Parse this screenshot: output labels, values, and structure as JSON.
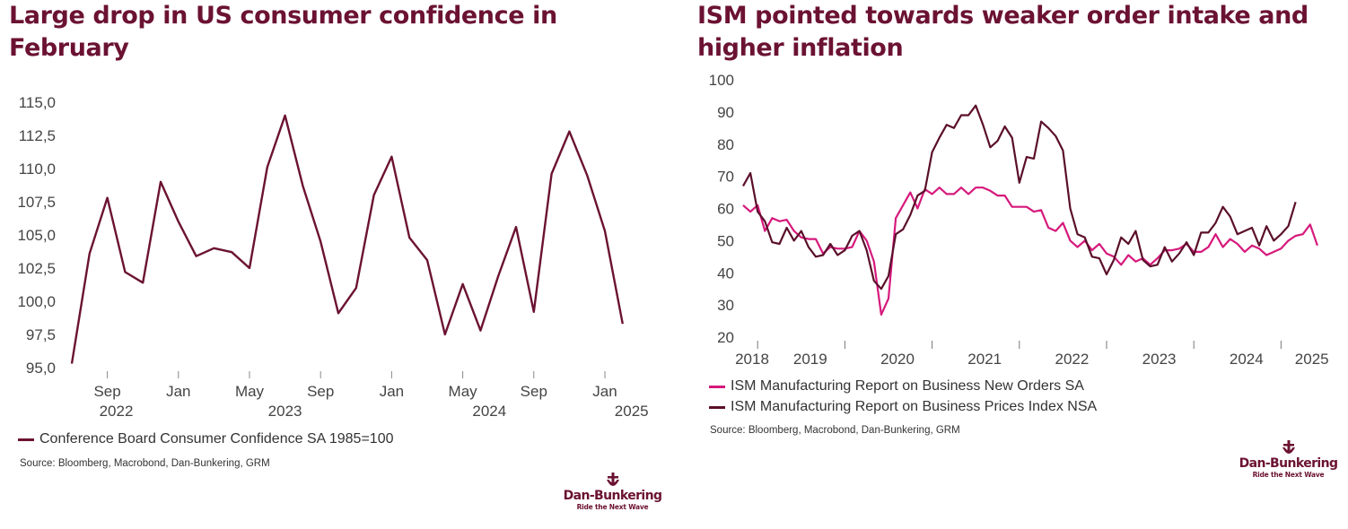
{
  "colors": {
    "accent": "#6b1232",
    "pink": "#d6197c",
    "axis": "#444444"
  },
  "left": {
    "title": "Large drop in US consumer confidence in February",
    "legend": "Conference Board Consumer Confidence SA 1985=100",
    "source": "Source: Bloomberg, Macrobond, Dan-Bunkering, GRM",
    "brand": {
      "name": "Dan-Bunkering",
      "tagline": "Ride the Next Wave",
      "icon": "anchor-logo-icon"
    }
  },
  "right": {
    "title": "ISM pointed towards weaker order intake and higher inflation",
    "source": "Source: Bloomberg, Macrobond, Dan-Bunkering, GRM",
    "brand": {
      "name": "Dan-Bunkering",
      "tagline": "Ride the Next Wave",
      "icon": "anchor-logo-icon"
    }
  },
  "chart_data": [
    {
      "type": "line",
      "title": "Large drop in US consumer confidence in February",
      "ylim": [
        95,
        115
      ],
      "yticks": [
        "95,0",
        "97,5",
        "100,0",
        "102,5",
        "105,0",
        "107,5",
        "110,0",
        "112,5",
        "115,0"
      ],
      "month_labels": [
        {
          "label": "Sep",
          "x": 2
        },
        {
          "label": "Jan",
          "x": 6
        },
        {
          "label": "May",
          "x": 10
        },
        {
          "label": "Sep",
          "x": 14
        },
        {
          "label": "Jan",
          "x": 18
        },
        {
          "label": "May",
          "x": 22
        },
        {
          "label": "Sep",
          "x": 26
        },
        {
          "label": "Jan",
          "x": 30
        }
      ],
      "year_labels": [
        {
          "label": "2022",
          "x": 2.5
        },
        {
          "label": "2023",
          "x": 12
        },
        {
          "label": "2024",
          "x": 23.5
        },
        {
          "label": "2025",
          "x": 31.5
        }
      ],
      "series": [
        {
          "name": "Conference Board Consumer Confidence SA 1985=100",
          "values": [
            95.3,
            103.6,
            107.8,
            102.2,
            101.4,
            109.0,
            106.0,
            103.4,
            104.0,
            103.7,
            102.5,
            110.1,
            114.0,
            108.7,
            104.5,
            99.1,
            101.0,
            108.0,
            110.9,
            104.8,
            103.1,
            97.5,
            101.3,
            97.8,
            101.9,
            105.6,
            99.2,
            109.6,
            112.8,
            109.5,
            105.3,
            98.3
          ]
        }
      ]
    },
    {
      "type": "line",
      "title": "ISM pointed towards weaker order intake and higher inflation",
      "ylim": [
        20,
        100
      ],
      "yticks": [
        "20",
        "30",
        "40",
        "50",
        "60",
        "70",
        "80",
        "90",
        "100"
      ],
      "year_labels": [
        {
          "label": "2018",
          "x": 0
        },
        {
          "label": "2019",
          "x": 8
        },
        {
          "label": "2020",
          "x": 20
        },
        {
          "label": "2021",
          "x": 32
        },
        {
          "label": "2022",
          "x": 44
        },
        {
          "label": "2023",
          "x": 56
        },
        {
          "label": "2024",
          "x": 68
        },
        {
          "label": "2025",
          "x": 77
        }
      ],
      "tick_marks_x": [
        2,
        14,
        26,
        38,
        50,
        62,
        74,
        85
      ],
      "series": [
        {
          "name": "ISM Manufacturing Report on Business New Orders SA",
          "color": "#d6197c",
          "values": [
            61,
            59,
            61,
            53,
            57,
            56,
            56.5,
            53,
            51,
            50.5,
            50.5,
            46,
            48,
            47.5,
            47.5,
            48,
            53,
            50,
            43.5,
            27,
            32,
            57,
            61,
            65,
            60,
            66,
            64.5,
            66.5,
            64.5,
            64.5,
            66.5,
            64.5,
            66.5,
            66.5,
            65.5,
            64,
            64,
            60.5,
            60.5,
            60.5,
            59,
            59.5,
            54,
            53,
            55.5,
            50,
            48,
            50,
            47,
            49,
            46,
            45,
            42.5,
            45.5,
            43.5,
            44.5,
            42.5,
            44.5,
            47,
            47,
            47.5,
            49,
            46.5,
            46.5,
            48,
            52,
            48,
            50.5,
            49,
            46.5,
            48.5,
            47.5,
            45.5,
            46.5,
            47.5,
            50,
            51.5,
            52,
            55,
            48.5
          ]
        },
        {
          "name": "ISM Manufacturing Report on Business Prices Index NSA",
          "color": "#5a0f2a",
          "values": [
            67,
            71,
            59,
            56,
            49.5,
            49,
            54,
            50,
            53,
            48,
            45,
            45.5,
            49,
            45.5,
            47,
            51.5,
            53,
            47,
            37.5,
            35,
            39,
            52,
            53.5,
            58,
            64,
            65.5,
            77.5,
            82,
            86,
            85,
            89,
            89,
            92,
            86,
            79,
            81,
            85.5,
            82,
            68,
            76,
            75.5,
            87,
            85,
            82.5,
            78,
            60,
            52,
            51,
            45,
            44.5,
            39.5,
            44,
            51,
            49,
            53,
            44,
            42,
            42.5,
            48,
            43.5,
            46,
            49.5,
            45.5,
            52.5,
            52.5,
            55.5,
            60.5,
            57.5,
            52,
            53,
            54,
            48.5,
            54.5,
            50,
            52,
            54.5,
            62
          ]
        }
      ]
    }
  ],
  "legend_right": [
    "ISM Manufacturing Report on Business New Orders SA",
    "ISM Manufacturing Report on Business Prices Index NSA"
  ]
}
